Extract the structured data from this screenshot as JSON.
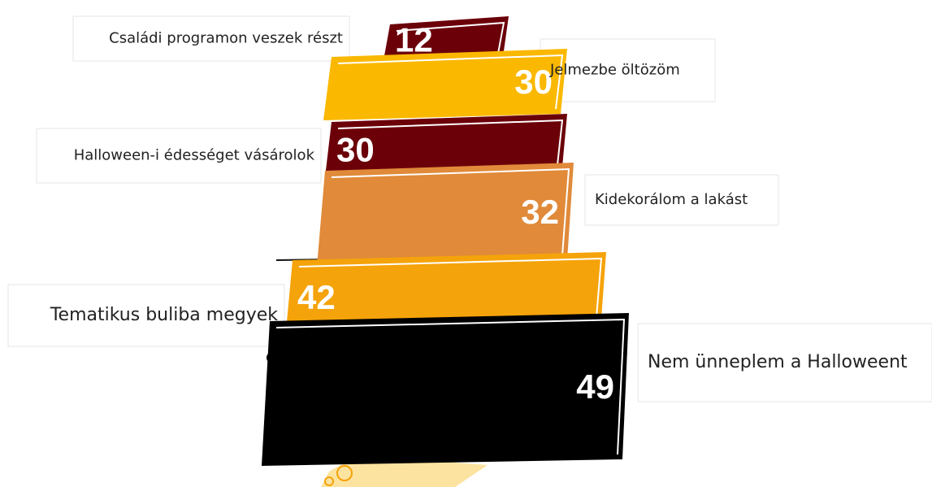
{
  "chart_data": {
    "type": "tilted-bar",
    "categories": [
      "Családi programon veszek részt",
      "Jelmezbe öltözöm",
      "Halloween-i édességet vásárolok",
      "Kidekorálom a lakást",
      "Tematikus buliba megyek",
      "Nem ünneplem a Halloweent"
    ],
    "values": [
      12,
      30,
      30,
      32,
      42,
      49
    ],
    "colors": [
      "#6b0009",
      "#fbb800",
      "#6b0009",
      "#e08a3a",
      "#f5a30a",
      "#000000"
    ]
  }
}
